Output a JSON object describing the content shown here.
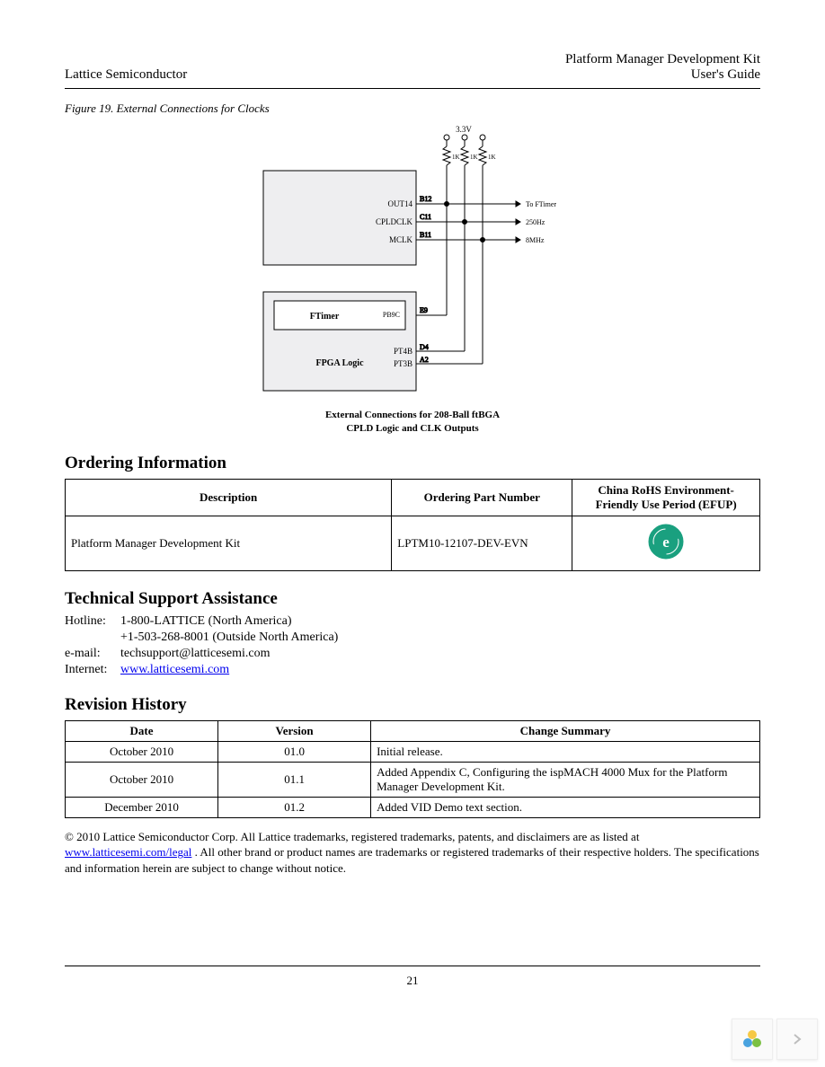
{
  "header": {
    "left": "Lattice  Semiconductor",
    "right_line1": "Platform Manager Development Kit",
    "right_line2": "User's Guide"
  },
  "figure": {
    "caption": "Figure 19. External Connections for Clocks",
    "diagram": {
      "vcc_label": "3.3V",
      "resistor_label": "1K",
      "block1": {
        "fill": "#eeeef0",
        "stroke": "#000000",
        "signals": [
          {
            "label": "OUT14",
            "pin": "B12",
            "dest": "To FTimer"
          },
          {
            "label": "CPLDCLK",
            "pin": "C11",
            "dest": "250Hz"
          },
          {
            "label": "MCLK",
            "pin": "B11",
            "dest": "8MHz"
          }
        ]
      },
      "block2": {
        "fill": "#eeeef0",
        "stroke": "#000000",
        "ftimer_label": "FTimer",
        "ftimer_pin_label": "PB9C",
        "ftimer_pin": "E9",
        "fpga_label": "FPGA Logic",
        "fpga_pins": [
          {
            "label": "PT4B",
            "pin": "D4"
          },
          {
            "label": "PT3B",
            "pin": "A2"
          }
        ]
      }
    },
    "bottom_caption_line1": "External Connections for 208-Ball ftBGA",
    "bottom_caption_line2": "CPLD Logic and CLK Outputs"
  },
  "ordering": {
    "heading": "Ordering Information",
    "columns": [
      "Description",
      "Ordering Part Number",
      "China RoHS Environment-Friendly Use Period (EFUP)"
    ],
    "row": {
      "description": "Platform Manager Development Kit",
      "part_number": "LPTM10-12107-DEV-EVN"
    },
    "rohs_icon_color": "#1aa07f"
  },
  "support": {
    "heading": "Technical Support Assistance",
    "rows": [
      {
        "label": "Hotline:",
        "value": "1-800-LATTICE (North America)"
      },
      {
        "label": "",
        "value": "+1-503-268-8001 (Outside North America)"
      },
      {
        "label": "e-mail:",
        "value": "techsupport@latticesemi.com"
      },
      {
        "label": "Internet:",
        "value": "www.latticesemi.com",
        "is_link": true
      }
    ]
  },
  "revision": {
    "heading": "Revision History",
    "columns": [
      "Date",
      "Version",
      "Change Summary"
    ],
    "rows": [
      {
        "date": "October 2010",
        "version": "01.0",
        "summary": "Initial release."
      },
      {
        "date": "October 2010",
        "version": "01.1",
        "summary": "Added Appendix C, Configuring the ispMACH 4000 Mux for the Platform Manager Development Kit."
      },
      {
        "date": "December 2010",
        "version": "01.2",
        "summary": "Added VID Demo text section."
      }
    ],
    "col_widths": [
      "22%",
      "22%",
      "56%"
    ]
  },
  "legal": {
    "text_before": "© 2010 Lattice Semiconductor Corp. All Lattice trademarks, registered trademarks, patents, and disclaimers are as listed at ",
    "link": "www.latticesemi.com/legal",
    "text_after": ". All other brand or product names are trademarks or registered trademarks of their respective holders. The specifications and information herein are subject to change without notice."
  },
  "page_number": "21",
  "corner_icon_colors": {
    "petal1": "#f6c945",
    "petal2": "#4aa3df",
    "petal3": "#7bc043",
    "arrow": "#bdbdbd"
  }
}
